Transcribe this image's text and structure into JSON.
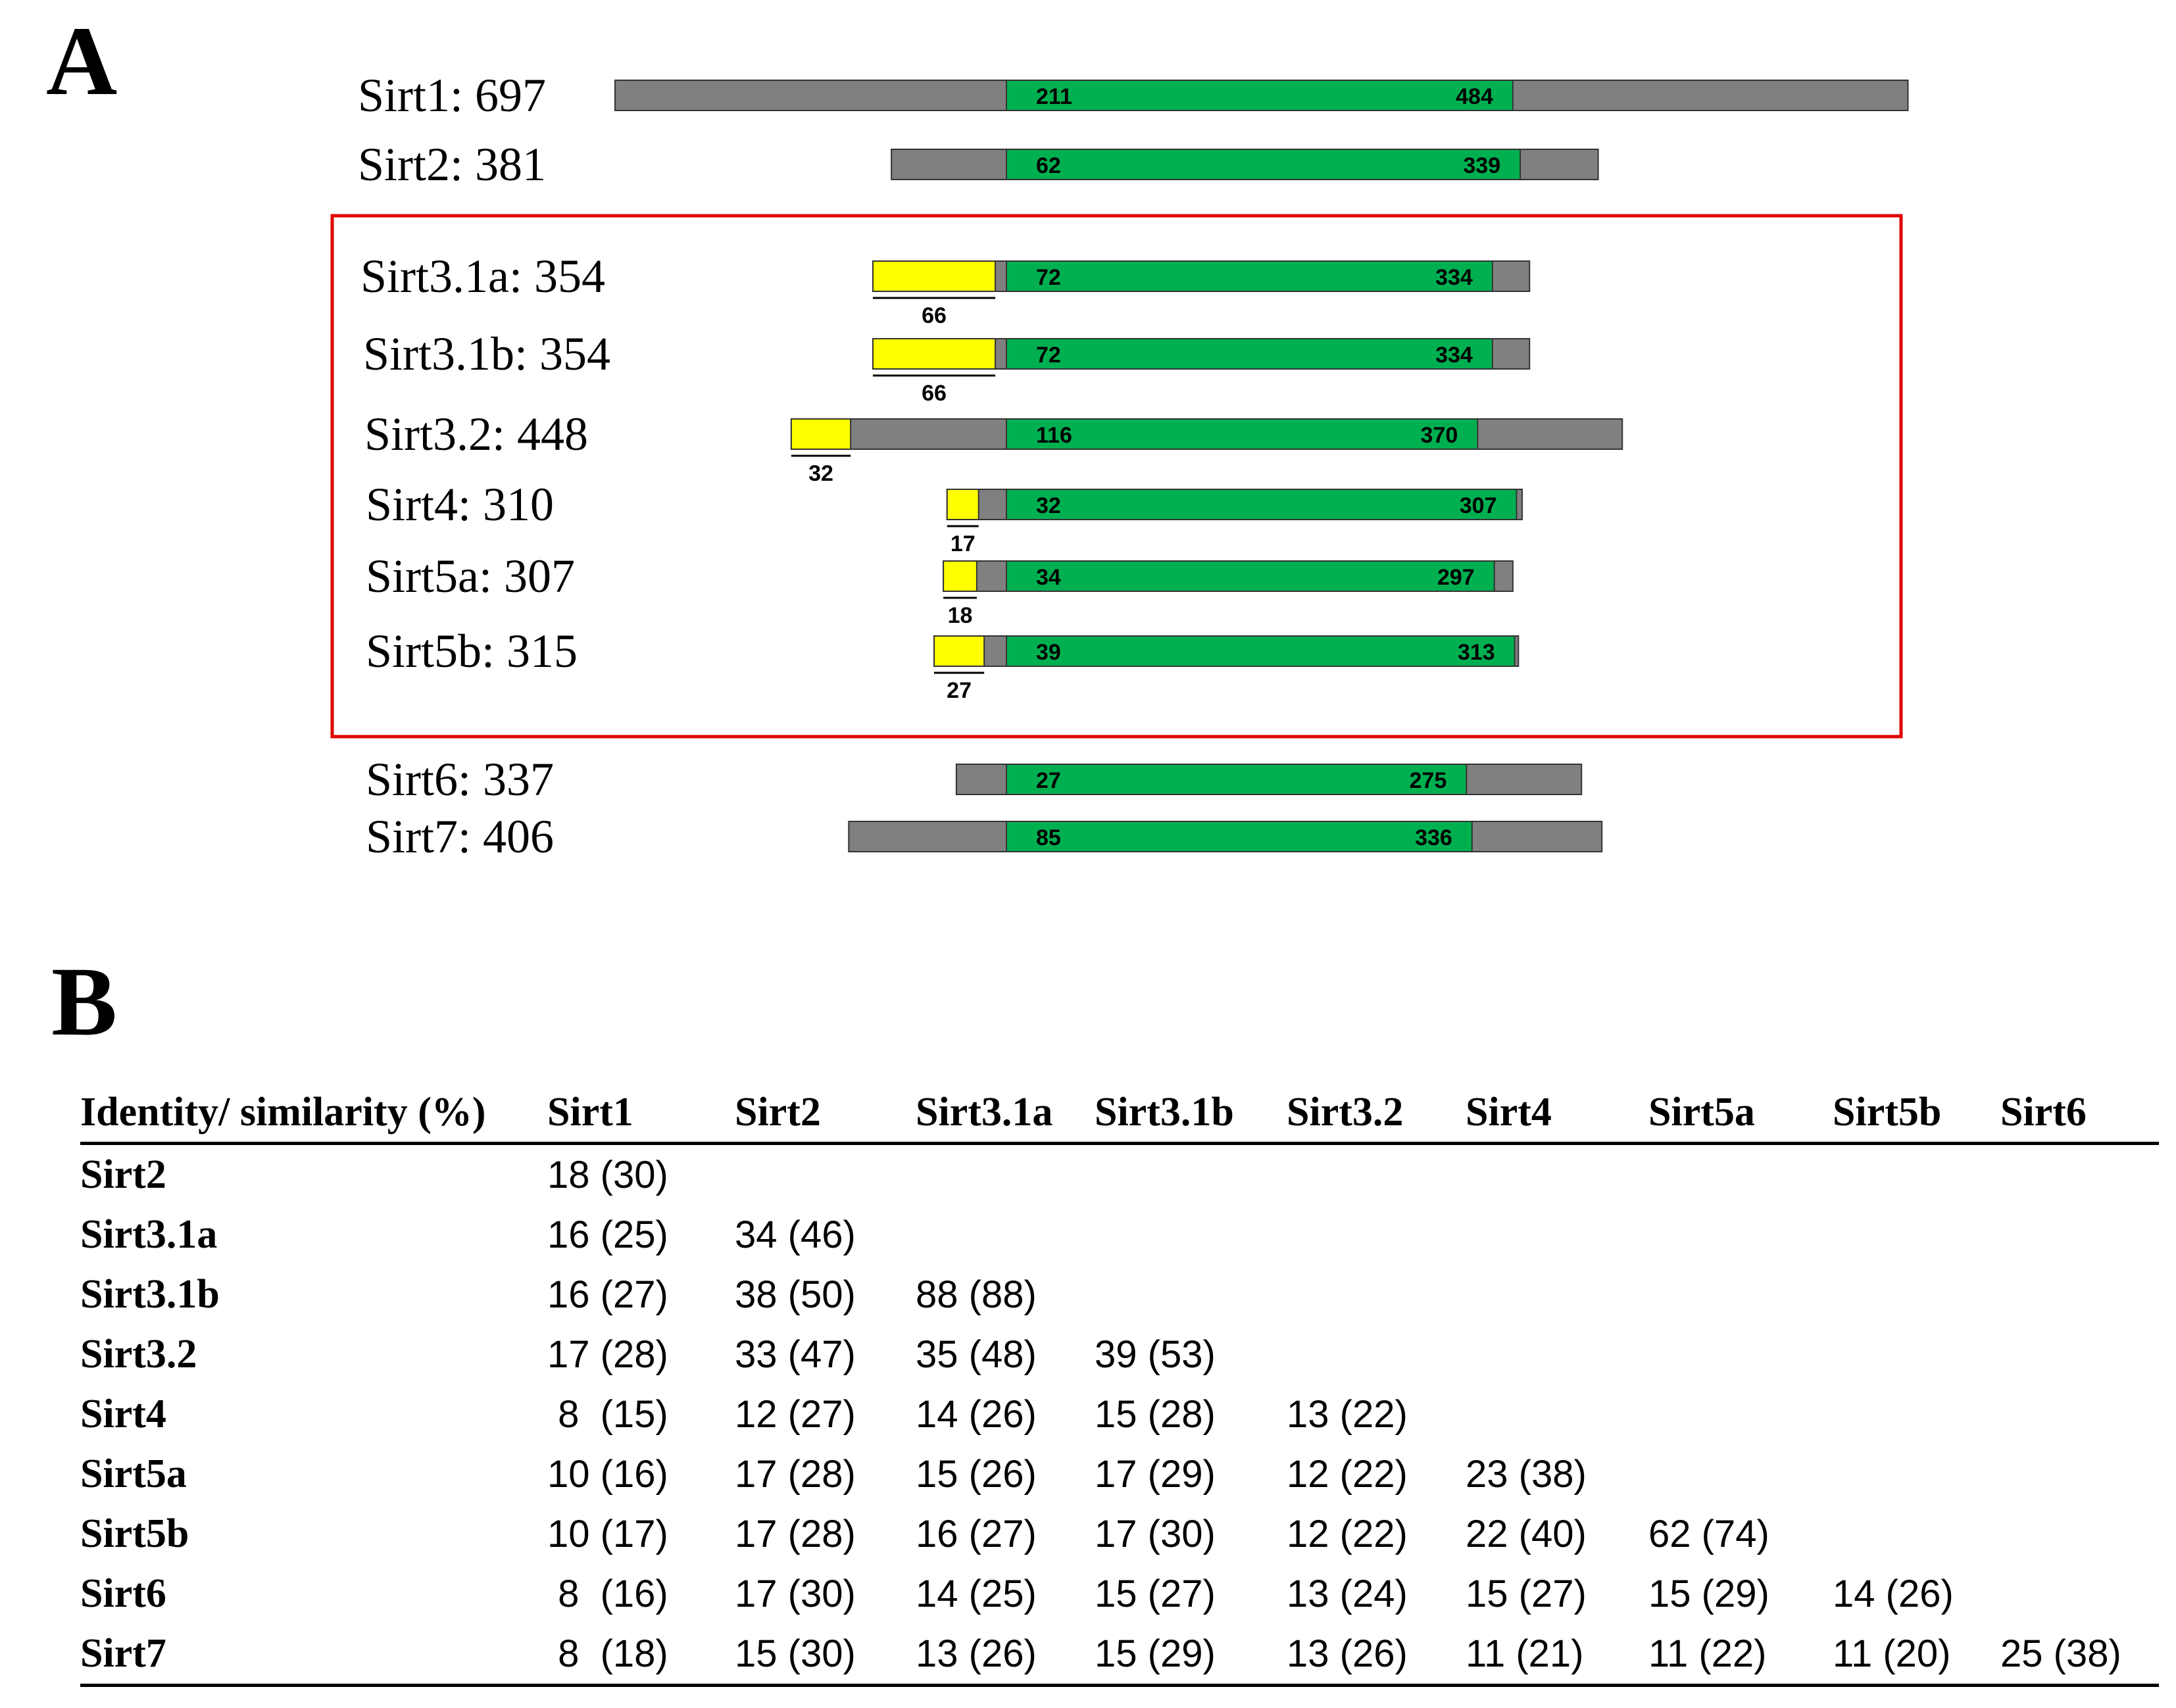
{
  "panel_a": {
    "letter": "A",
    "proteins": [
      {
        "label": "Sirt1: 697",
        "length": 697,
        "signal": null,
        "core_start": 211,
        "core_end": 484,
        "in_box": false
      },
      {
        "label": "Sirt2: 381",
        "length": 381,
        "signal": null,
        "core_start": 62,
        "core_end": 339,
        "in_box": false
      },
      {
        "label": "Sirt3.1a: 354",
        "length": 354,
        "signal": 66,
        "core_start": 72,
        "core_end": 334,
        "in_box": true
      },
      {
        "label": "Sirt3.1b: 354",
        "length": 354,
        "signal": 66,
        "core_start": 72,
        "core_end": 334,
        "in_box": true
      },
      {
        "label": "Sirt3.2: 448",
        "length": 448,
        "signal": 32,
        "core_start": 116,
        "core_end": 370,
        "in_box": true
      },
      {
        "label": "Sirt4: 310",
        "length": 310,
        "signal": 17,
        "core_start": 32,
        "core_end": 307,
        "in_box": true
      },
      {
        "label": "Sirt5a: 307",
        "length": 307,
        "signal": 18,
        "core_start": 34,
        "core_end": 297,
        "in_box": true
      },
      {
        "label": "Sirt5b: 315",
        "length": 315,
        "signal": 27,
        "core_start": 39,
        "core_end": 313,
        "in_box": true
      },
      {
        "label": "Sirt6: 337",
        "length": 337,
        "signal": null,
        "core_start": 27,
        "core_end": 275,
        "in_box": false
      },
      {
        "label": "Sirt7: 406",
        "length": 406,
        "signal": null,
        "core_start": 85,
        "core_end": 336,
        "in_box": false
      }
    ],
    "colors": {
      "grey": "#808080",
      "green": "#00b050",
      "yellow": "#ffff00",
      "box": "#e00000"
    }
  },
  "panel_b": {
    "letter": "B",
    "corner_header": "Identity/ similarity (%)",
    "columns": [
      "Sirt1",
      "Sirt2",
      "Sirt3.1a",
      "Sirt3.1b",
      "Sirt3.2",
      "Sirt4",
      "Sirt5a",
      "Sirt5b",
      "Sirt6"
    ],
    "rows": [
      {
        "name": "Sirt2",
        "cells": [
          "18 (30)"
        ]
      },
      {
        "name": "Sirt3.1a",
        "cells": [
          "16 (25)",
          "34 (46)"
        ]
      },
      {
        "name": "Sirt3.1b",
        "cells": [
          "16 (27)",
          "38 (50)",
          "88 (88)"
        ]
      },
      {
        "name": "Sirt3.2",
        "cells": [
          "17 (28)",
          "33 (47)",
          "35 (48)",
          "39 (53)"
        ]
      },
      {
        "name": "Sirt4",
        "cells": [
          " 8  (15)",
          "12 (27)",
          "14 (26)",
          "15 (28)",
          "13 (22)"
        ]
      },
      {
        "name": "Sirt5a",
        "cells": [
          "10 (16)",
          "17 (28)",
          "15 (26)",
          "17 (29)",
          "12 (22)",
          "23 (38)"
        ]
      },
      {
        "name": "Sirt5b",
        "cells": [
          "10 (17)",
          "17 (28)",
          "16 (27)",
          "17 (30)",
          "12 (22)",
          "22 (40)",
          "62 (74)"
        ]
      },
      {
        "name": "Sirt6",
        "cells": [
          " 8  (16)",
          "17 (30)",
          "14 (25)",
          "15 (27)",
          "13 (24)",
          "15 (27)",
          "15 (29)",
          "14 (26)"
        ]
      },
      {
        "name": "Sirt7",
        "cells": [
          " 8  (18)",
          "15 (30)",
          "13 (26)",
          "15 (29)",
          "13 (26)",
          "11 (21)",
          "11 (22)",
          "11 (20)",
          "25 (38)"
        ]
      }
    ]
  }
}
